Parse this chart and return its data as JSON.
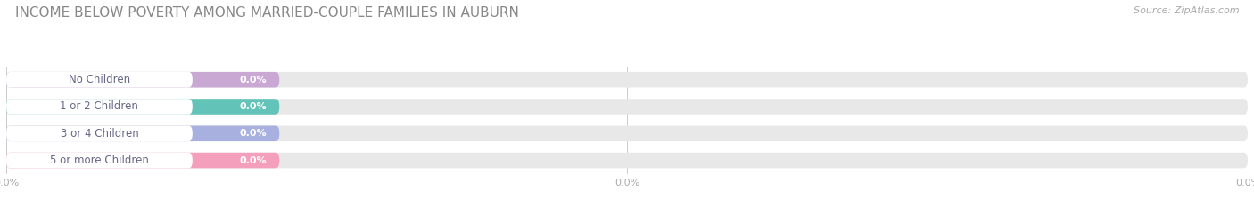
{
  "title": "INCOME BELOW POVERTY AMONG MARRIED-COUPLE FAMILIES IN AUBURN",
  "source": "Source: ZipAtlas.com",
  "categories": [
    "No Children",
    "1 or 2 Children",
    "3 or 4 Children",
    "5 or more Children"
  ],
  "values": [
    0.0,
    0.0,
    0.0,
    0.0
  ],
  "bar_colors": [
    "#c9a8d4",
    "#62c4b8",
    "#a8b0e0",
    "#f4a0bc"
  ],
  "bar_bg_color": "#e8e8e8",
  "background_color": "#ffffff",
  "label_text_color": "#666688",
  "value_text_color": "#ffffff",
  "tick_text_color": "#aaaaaa",
  "title_color": "#888888",
  "source_color": "#aaaaaa",
  "xlim": [
    0,
    100
  ],
  "title_fontsize": 11,
  "label_fontsize": 8.5,
  "value_fontsize": 8,
  "source_fontsize": 8,
  "tick_fontsize": 8
}
